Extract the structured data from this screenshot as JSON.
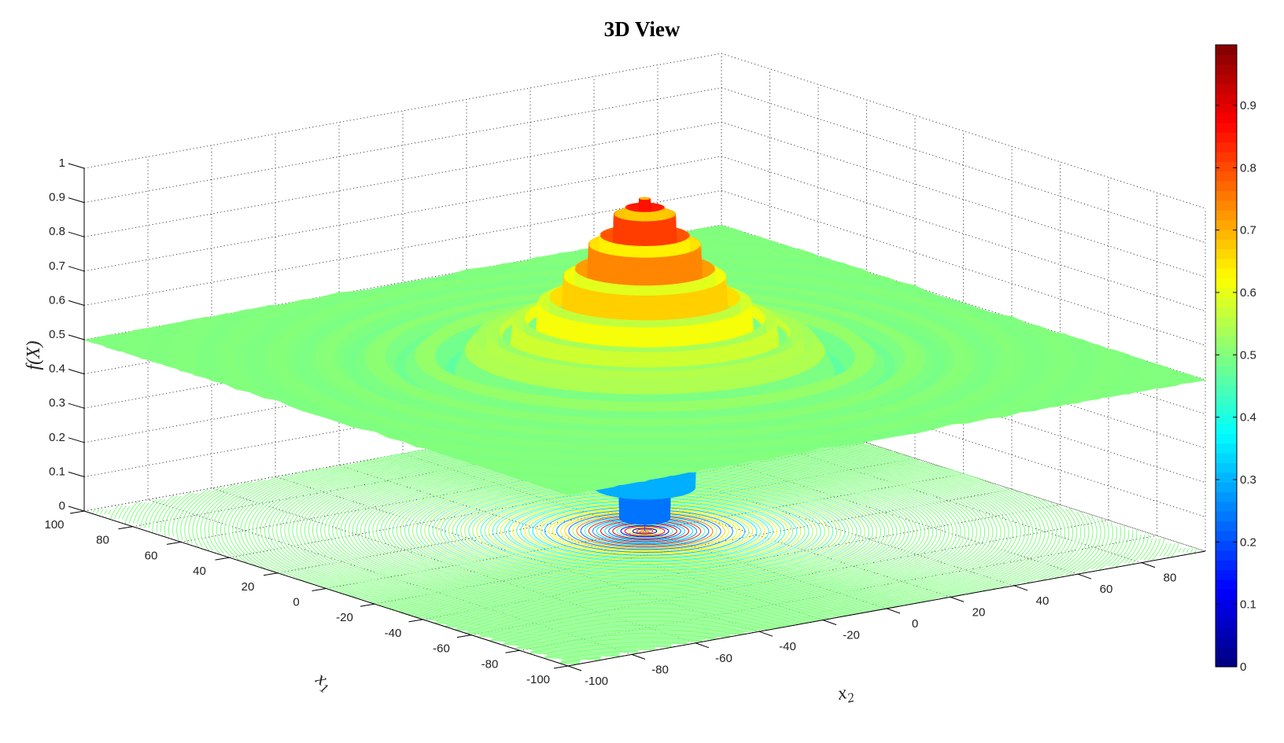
{
  "chart_data": {
    "type": "surface",
    "title": "3D View",
    "xlabel": {
      "text": "x",
      "subscript": "1"
    },
    "ylabel": {
      "text": "x",
      "subscript": "2"
    },
    "zlabel": "f(X)",
    "xlim": [
      -100,
      100
    ],
    "ylim": [
      -100,
      100
    ],
    "zlim": [
      0,
      1
    ],
    "x_ticks": [
      "-100",
      "-80",
      "-60",
      "-40",
      "-20",
      "0",
      "20",
      "40",
      "60",
      "80",
      "100"
    ],
    "y_ticks": [
      "-100",
      "-80",
      "-60",
      "-40",
      "-20",
      "0",
      "20",
      "40",
      "60",
      "80"
    ],
    "z_ticks": [
      "0",
      "0.1",
      "0.2",
      "0.3",
      "0.4",
      "0.5",
      "0.6",
      "0.7",
      "0.8",
      "0.9",
      "1"
    ],
    "grid": true,
    "colormap": "jet",
    "floor_contours": true,
    "colorbar": {
      "location": "right",
      "clim": [
        0,
        0.997
      ],
      "ticks": [
        "0",
        "0.1",
        "0.2",
        "0.3",
        "0.4",
        "0.5",
        "0.6",
        "0.7",
        "0.8",
        "0.9"
      ]
    }
  }
}
